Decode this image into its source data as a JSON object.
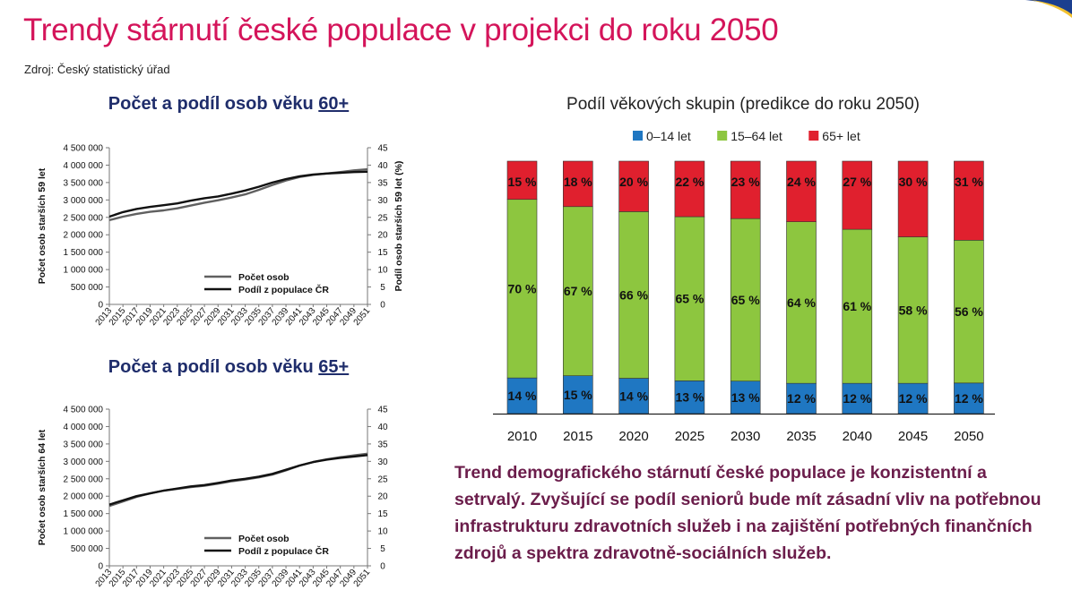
{
  "header": {
    "title": "Trendy stárnutí české populace v projekci do roku 2050",
    "source": "Zdroj: Český statistický úřad"
  },
  "colors": {
    "title": "#d4145a",
    "panel_title": "#1f2d6b",
    "conclusion": "#6b1d4b",
    "age_0_14": "#1f77c2",
    "age_15_64": "#8dc63f",
    "age_65_plus": "#e0202e"
  },
  "conclusion": "Trend demografického stárnutí české populace je konzistentní a setrvalý. Zvyšující se podíl seniorů bude mít zásadní vliv na potřebnou infrastrukturu zdravotních služeb i na zajištění potřebných finančních zdrojů a spektra zdravotně-sociálních služeb.",
  "chart_data": [
    {
      "type": "line",
      "id": "chart60",
      "title": "Počet a podíl osob věku",
      "title_highlight": "60+",
      "x": [
        "2013",
        "2015",
        "2017",
        "2019",
        "2021",
        "2023",
        "2025",
        "2027",
        "2029",
        "2031",
        "2033",
        "2035",
        "2037",
        "2039",
        "2041",
        "2043",
        "2045",
        "2047",
        "2049",
        "2051"
      ],
      "ylabel": "Počet osob starších 59 let",
      "y2label": "Podíl osob starších 59 let (%)",
      "ylim": [
        0,
        4500000
      ],
      "y2lim": [
        0,
        45
      ],
      "yticks": [
        "0",
        "500 000",
        "1 000 000",
        "1 500 000",
        "2 000 000",
        "2 500 000",
        "3 000 000",
        "3 500 000",
        "4 000 000",
        "4 500 000"
      ],
      "y2ticks": [
        "0",
        "5",
        "10",
        "15",
        "20",
        "25",
        "30",
        "35",
        "40",
        "45"
      ],
      "series": [
        {
          "name": "Počet osob",
          "axis": "left",
          "color": "#606060",
          "values": [
            2420000,
            2520000,
            2600000,
            2660000,
            2700000,
            2760000,
            2840000,
            2920000,
            2990000,
            3070000,
            3160000,
            3290000,
            3430000,
            3560000,
            3660000,
            3720000,
            3760000,
            3800000,
            3850000,
            3880000
          ]
        },
        {
          "name": "Podíl z populace ČR",
          "axis": "right",
          "color": "#111111",
          "values": [
            25.2,
            26.5,
            27.4,
            28.0,
            28.5,
            29.0,
            29.8,
            30.5,
            31.0,
            31.8,
            32.7,
            33.8,
            35.0,
            36.0,
            36.8,
            37.3,
            37.6,
            37.8,
            38.0,
            38.1
          ]
        }
      ]
    },
    {
      "type": "line",
      "id": "chart65",
      "title": "Počet a podíl osob věku",
      "title_highlight": "65+",
      "x": [
        "2013",
        "2015",
        "2017",
        "2019",
        "2021",
        "2023",
        "2025",
        "2027",
        "2029",
        "2031",
        "2033",
        "2035",
        "2037",
        "2039",
        "2041",
        "2043",
        "2045",
        "2047",
        "2049",
        "2051"
      ],
      "ylabel": "Počet osob starších 64 let",
      "y2label": "",
      "ylim": [
        0,
        4500000
      ],
      "y2lim": [
        0,
        45
      ],
      "yticks": [
        "0",
        "500 000",
        "1 000 000",
        "1 500 000",
        "2 000 000",
        "2 500 000",
        "3 000 000",
        "3 500 000",
        "4 000 000",
        "4 500 000"
      ],
      "y2ticks": [
        "0",
        "5",
        "10",
        "15",
        "20",
        "25",
        "30",
        "35",
        "40",
        "45"
      ],
      "series": [
        {
          "name": "Počet osob",
          "axis": "left",
          "color": "#606060",
          "values": [
            1720000,
            1850000,
            1980000,
            2080000,
            2160000,
            2210000,
            2260000,
            2300000,
            2360000,
            2430000,
            2480000,
            2540000,
            2620000,
            2740000,
            2880000,
            2980000,
            3060000,
            3120000,
            3170000,
            3220000
          ]
        },
        {
          "name": "Podíl z populace ČR",
          "axis": "right",
          "color": "#111111",
          "values": [
            17.6,
            18.8,
            20.0,
            20.8,
            21.6,
            22.2,
            22.8,
            23.2,
            23.8,
            24.5,
            25.0,
            25.6,
            26.4,
            27.6,
            28.8,
            29.8,
            30.5,
            31.0,
            31.4,
            31.8
          ]
        }
      ]
    },
    {
      "type": "bar",
      "id": "stacked",
      "stacked": true,
      "percent": true,
      "title": "Podíl věkových skupin (predikce do roku 2050)",
      "categories": [
        "2010",
        "2015",
        "2020",
        "2025",
        "2030",
        "2035",
        "2040",
        "2045",
        "2050"
      ],
      "series": [
        {
          "name": "0–14 let",
          "color": "#1f77c2",
          "values": [
            14,
            15,
            14,
            13,
            13,
            12,
            12,
            12,
            12
          ],
          "labels": [
            "14 %",
            "15 %",
            "14 %",
            "13 %",
            "13 %",
            "12 %",
            "12 %",
            "12 %",
            "12 %"
          ]
        },
        {
          "name": "15–64 let",
          "color": "#8dc63f",
          "values": [
            70,
            67,
            66,
            65,
            65,
            64,
            61,
            58,
            56
          ],
          "labels": [
            "70 %",
            "67 %",
            "66 %",
            "65 %",
            "65 %",
            "64 %",
            "61 %",
            "58 %",
            "56 %"
          ]
        },
        {
          "name": "65+ let",
          "color": "#e0202e",
          "values": [
            15,
            18,
            20,
            22,
            23,
            24,
            27,
            30,
            31
          ],
          "labels": [
            "15 %",
            "18 %",
            "20 %",
            "22 %",
            "23 %",
            "24 %",
            "27 %",
            "30 %",
            "31 %"
          ]
        }
      ]
    }
  ]
}
